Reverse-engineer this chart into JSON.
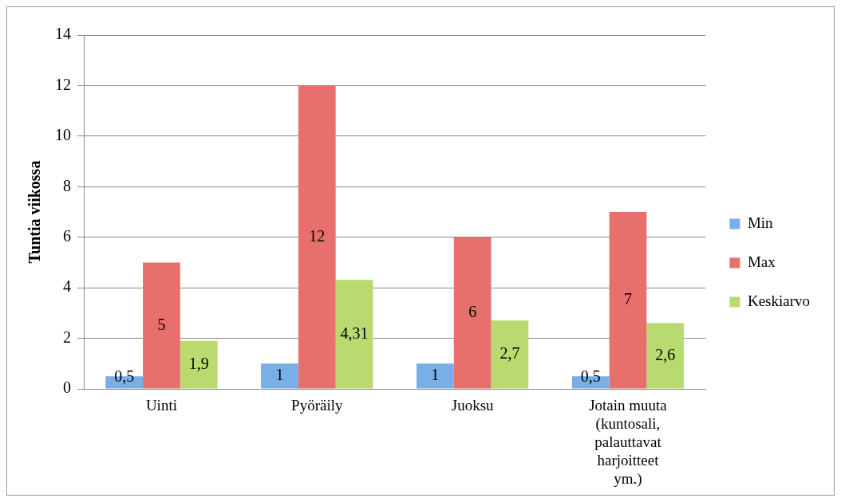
{
  "chart_data": {
    "type": "bar",
    "ylabel": "Tuntia viikossa",
    "categories": [
      "Uinti",
      "Pyöräily",
      "Juoksu",
      "Jotain muuta (kuntosali, palauttavat harjoitteet ym.)"
    ],
    "series": [
      {
        "name": "Min",
        "color": "#7aaee6",
        "values": [
          0.5,
          1,
          1,
          0.5
        ],
        "value_labels": [
          "0,5",
          "1",
          "1",
          "0,5"
        ]
      },
      {
        "name": "Max",
        "color": "#e8706c",
        "values": [
          5,
          12,
          6,
          7
        ],
        "value_labels": [
          "5",
          "12",
          "6",
          "7"
        ]
      },
      {
        "name": "Keskiarvo",
        "color": "#b8da6e",
        "values": [
          1.9,
          4.31,
          2.7,
          2.6
        ],
        "value_labels": [
          "1,9",
          "4,31",
          "2,7",
          "2,6"
        ]
      }
    ],
    "ylim": [
      0,
      14
    ],
    "yticks": [
      0,
      2,
      4,
      6,
      8,
      10,
      12,
      14
    ],
    "grid": "y",
    "legend": "right"
  }
}
